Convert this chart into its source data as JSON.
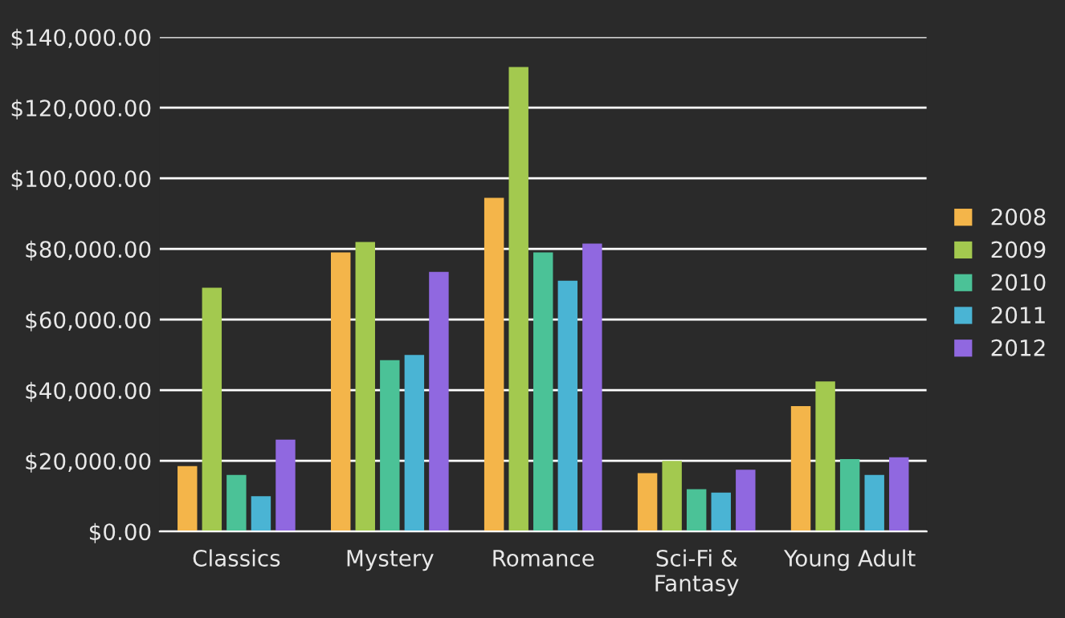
{
  "chart_data": {
    "type": "bar",
    "categories": [
      "Classics",
      "Mystery",
      "Romance",
      "Sci-Fi &\nFantasy",
      "Young Adult"
    ],
    "series": [
      {
        "name": "2008",
        "color": "#f4b54a",
        "values": [
          18500,
          79000,
          94500,
          16500,
          35500
        ]
      },
      {
        "name": "2009",
        "color": "#a3c94f",
        "values": [
          69000,
          82000,
          131500,
          20000,
          42500
        ]
      },
      {
        "name": "2010",
        "color": "#4bc297",
        "values": [
          16000,
          48500,
          79000,
          12000,
          20500
        ]
      },
      {
        "name": "2011",
        "color": "#4ab4d4",
        "values": [
          10000,
          50000,
          71000,
          11000,
          16000
        ]
      },
      {
        "name": "2012",
        "color": "#9068e0",
        "values": [
          26000,
          73500,
          81500,
          17500,
          21000
        ]
      }
    ],
    "ylim": [
      0,
      140000
    ],
    "yticks": [
      {
        "value": 0,
        "label": "$0.00"
      },
      {
        "value": 20000,
        "label": "$20,000.00"
      },
      {
        "value": 40000,
        "label": "$40,000.00"
      },
      {
        "value": 60000,
        "label": "$60,000.00"
      },
      {
        "value": 80000,
        "label": "$80,000.00"
      },
      {
        "value": 100000,
        "label": "$100,000.00"
      },
      {
        "value": 120000,
        "label": "$120,000.00"
      },
      {
        "value": 140000,
        "label": "$140,000.00"
      }
    ],
    "grid": "y",
    "legend": "right"
  }
}
